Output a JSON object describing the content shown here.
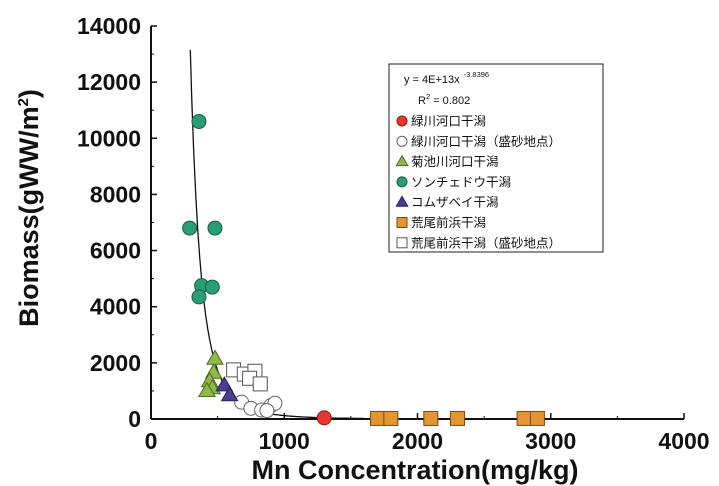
{
  "chart_data": {
    "type": "scatter",
    "title": "",
    "xlabel": "Mn Concentration(mg/kg)",
    "ylabel_main": "Biomass(gWW/m",
    "ylabel_sup": "2",
    "ylabel_end": ")",
    "xlim": [
      0,
      4000
    ],
    "ylim": [
      0,
      14000
    ],
    "xticks": [
      "0",
      "1000",
      "2000",
      "3000",
      "4000"
    ],
    "yticks": [
      "0",
      "2000",
      "4000",
      "6000",
      "8000",
      "10000",
      "12000",
      "14000"
    ],
    "grid": false,
    "legend_position": "top-right",
    "fit": {
      "equation_main": "y = 4E+13x",
      "equation_exp": "-3.8396",
      "r2_label": "R",
      "r2_sup": "2",
      "r2_value": " = 0.802",
      "coefficient": 40000000000000.0,
      "exponent": -3.8396
    },
    "series": [
      {
        "name": "緑川河口干潟",
        "marker": "circle",
        "fill": "#e8372c",
        "stroke": "#8a1b14",
        "points": [
          [
            1300,
            40
          ]
        ]
      },
      {
        "name": "緑川河口干潟（盛砂地点）",
        "marker": "circle",
        "fill": "#ffffff",
        "stroke": "#666666",
        "points": [
          [
            680,
            600
          ],
          [
            750,
            380
          ],
          [
            830,
            320
          ],
          [
            900,
            480
          ],
          [
            930,
            560
          ],
          [
            870,
            300
          ]
        ]
      },
      {
        "name": "菊池川河口干潟",
        "marker": "triangle",
        "fill": "#8fb84a",
        "stroke": "#4d6b22",
        "points": [
          [
            480,
            2150
          ],
          [
            470,
            1650
          ],
          [
            440,
            1350
          ],
          [
            460,
            1100
          ],
          [
            420,
            1000
          ]
        ]
      },
      {
        "name": "ソンチェドウ干潟",
        "marker": "circle",
        "fill": "#2a9d72",
        "stroke": "#136045",
        "points": [
          [
            360,
            10600
          ],
          [
            290,
            6800
          ],
          [
            480,
            6800
          ],
          [
            380,
            4750
          ],
          [
            460,
            4700
          ],
          [
            360,
            4350
          ]
        ]
      },
      {
        "name": "コムザベイ干潟",
        "marker": "triangle",
        "fill": "#4b3d8f",
        "stroke": "#2a2060",
        "points": [
          [
            550,
            1200
          ],
          [
            590,
            850
          ]
        ]
      },
      {
        "name": "荒尾前浜干潟",
        "marker": "square",
        "fill": "#e59433",
        "stroke": "#7a4a12",
        "points": [
          [
            1700,
            20
          ],
          [
            1800,
            20
          ],
          [
            2100,
            20
          ],
          [
            2300,
            20
          ],
          [
            2800,
            20
          ],
          [
            2900,
            20
          ]
        ]
      },
      {
        "name": "荒尾前浜干潟（盛砂地点）",
        "marker": "square",
        "fill": "#ffffff",
        "stroke": "#555555",
        "points": [
          [
            620,
            1750
          ],
          [
            700,
            1600
          ],
          [
            780,
            1700
          ],
          [
            740,
            1450
          ],
          [
            820,
            1250
          ]
        ]
      }
    ]
  }
}
